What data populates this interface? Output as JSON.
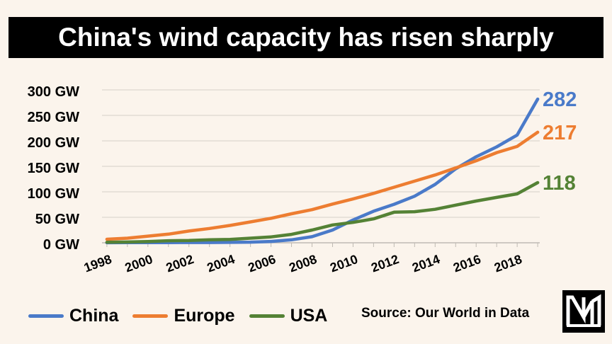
{
  "title": "China's wind capacity has risen sharply",
  "source": "Source: Our World in Data",
  "logo_text": "NM",
  "chart_data": {
    "type": "line",
    "title": "China's wind capacity has risen sharply",
    "xlabel": "",
    "ylabel": "",
    "x": [
      1998,
      1999,
      2000,
      2001,
      2002,
      2003,
      2004,
      2005,
      2006,
      2007,
      2008,
      2009,
      2010,
      2011,
      2012,
      2013,
      2014,
      2015,
      2016,
      2017,
      2018,
      2019
    ],
    "x_tick_labels": [
      "1998",
      "2000",
      "2002",
      "2004",
      "2006",
      "2008",
      "2010",
      "2012",
      "2014",
      "2016",
      "2018"
    ],
    "x_tick_values": [
      1998,
      2000,
      2002,
      2004,
      2006,
      2008,
      2010,
      2012,
      2014,
      2016,
      2018
    ],
    "ylim": [
      0,
      300
    ],
    "y_ticks": [
      0,
      50,
      100,
      150,
      200,
      250,
      300
    ],
    "y_tick_labels": [
      "0 GW",
      "50 GW",
      "100 GW",
      "150 GW",
      "200 GW",
      "250 GW",
      "300 GW"
    ],
    "grid": true,
    "series": [
      {
        "name": "China",
        "color": "#4a7ac9",
        "end_label": "282",
        "values": [
          0.2,
          0.3,
          0.3,
          0.4,
          0.5,
          0.6,
          0.8,
          1.3,
          2.6,
          5.9,
          12,
          25,
          44.7,
          62,
          75.6,
          91.4,
          114.6,
          145.1,
          168.7,
          188.2,
          211.4,
          282
        ]
      },
      {
        "name": "Europe",
        "color": "#ed7d31",
        "end_label": "217",
        "values": [
          7,
          9,
          13,
          17,
          23,
          28,
          34,
          41,
          48,
          57,
          65,
          76,
          86,
          97,
          109,
          121,
          133,
          147,
          161,
          177,
          189,
          217
        ]
      },
      {
        "name": "USA",
        "color": "#548235",
        "end_label": "118",
        "values": [
          1,
          1.5,
          2.5,
          4,
          4.5,
          6,
          6.7,
          9,
          11.5,
          16.5,
          25,
          35,
          40,
          47,
          60,
          61,
          65.7,
          73.9,
          82,
          89,
          96,
          118
        ]
      }
    ]
  }
}
